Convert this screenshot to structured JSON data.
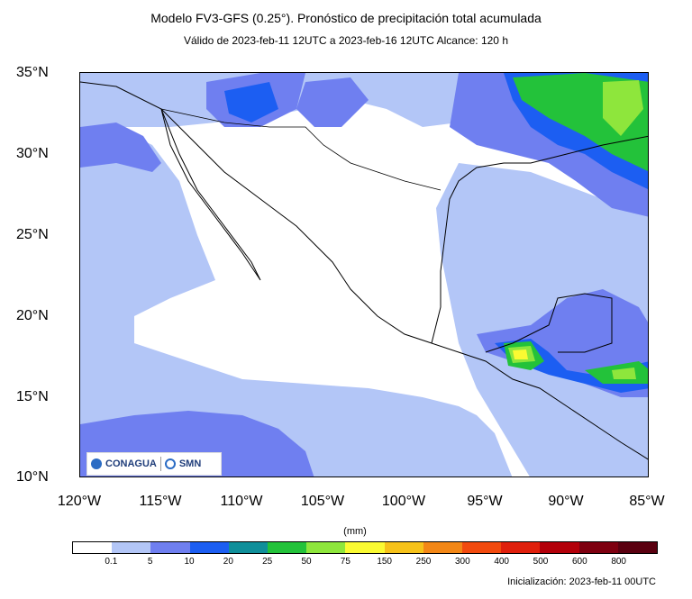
{
  "header": {
    "title": "Modelo FV3-GFS (0.25°). Pronóstico de precipitación total acumulada",
    "subtitle": "Válido de 2023-feb-11 12UTC a 2023-feb-16 12UTC    Alcance: 120 h"
  },
  "axes": {
    "lat_labels": [
      "35°N",
      "30°N",
      "25°N",
      "20°N",
      "15°N",
      "10°N"
    ],
    "lon_labels": [
      "120°W",
      "115°W",
      "110°W",
      "105°W",
      "100°W",
      "95°W",
      "90°W",
      "85°W"
    ]
  },
  "colorbar": {
    "unit": "(mm)",
    "ticks": [
      "0.1",
      "5",
      "10",
      "20",
      "25",
      "50",
      "75",
      "150",
      "250",
      "300",
      "400",
      "500",
      "600",
      "800"
    ],
    "colors": [
      "#ffffff",
      "#b3c6f7",
      "#6f7ff0",
      "#1c5ef2",
      "#108f9a",
      "#23c23a",
      "#8ee63c",
      "#fafa32",
      "#f6c21a",
      "#f38716",
      "#f24a0e",
      "#e0200c",
      "#b3000a",
      "#7e0010",
      "#5a0010"
    ]
  },
  "footer": {
    "init": "Inicialización: 2023-feb-11 00UTC"
  },
  "logo": {
    "left_text": "CONAGUA",
    "right_text": "SMN"
  }
}
